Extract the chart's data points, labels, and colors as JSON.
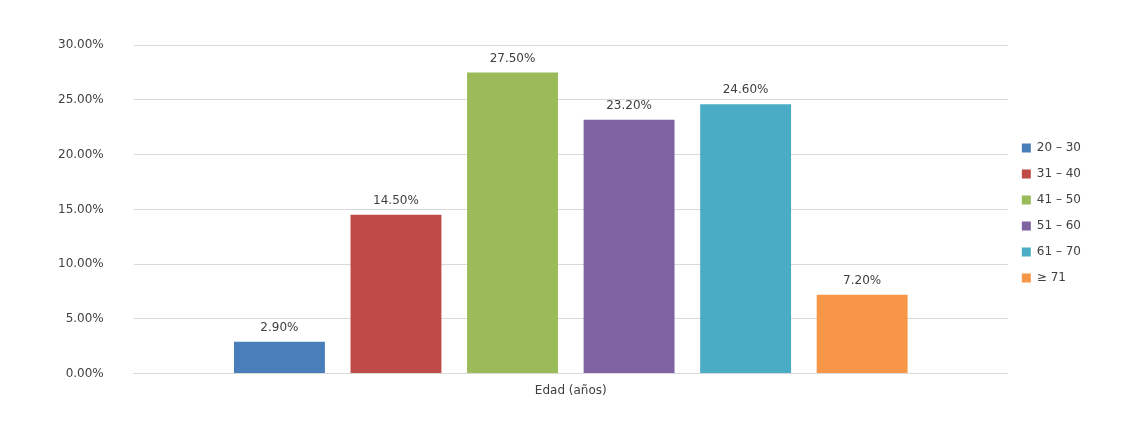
{
  "chart_data": {
    "type": "bar",
    "categories": [
      "Edad (años)"
    ],
    "series": [
      {
        "name": "20 – 30",
        "color": "#4a7ebb",
        "values": [
          2.9
        ],
        "value_labels": [
          "2.90%"
        ]
      },
      {
        "name": "31 – 40",
        "color": "#be4b48",
        "values": [
          14.5
        ],
        "value_labels": [
          "14.50%"
        ]
      },
      {
        "name": "41 – 50",
        "color": "#9bbb59",
        "values": [
          27.5
        ],
        "value_labels": [
          "27.50%"
        ]
      },
      {
        "name": "51 – 60",
        "color": "#7e62a1",
        "values": [
          23.2
        ],
        "value_labels": [
          "23.20%"
        ]
      },
      {
        "name": "61 – 70",
        "color": "#4bacc6",
        "values": [
          24.6
        ],
        "value_labels": [
          "24.60%"
        ]
      },
      {
        "name": "≥ 71",
        "color": "#f79646",
        "values": [
          7.2
        ],
        "value_labels": [
          "7.20%"
        ]
      }
    ],
    "ylim": [
      0,
      30
    ],
    "yticks": [
      {
        "value": 0,
        "label": "0.00%"
      },
      {
        "value": 5,
        "label": "5.00%"
      },
      {
        "value": 10,
        "label": "10.00%"
      },
      {
        "value": 15,
        "label": "15.00%"
      },
      {
        "value": 20,
        "label": "20.00%"
      },
      {
        "value": 25,
        "label": "25.00%"
      },
      {
        "value": 30,
        "label": "30.00%"
      }
    ],
    "grid": "y",
    "legend": "right"
  }
}
